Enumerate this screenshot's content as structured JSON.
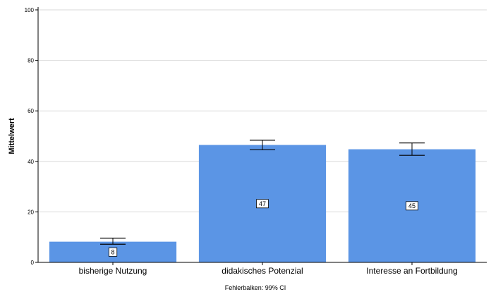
{
  "chart_data": {
    "type": "bar",
    "categories": [
      "bisherige Nutzung",
      "didakisches Potenzial",
      "Interesse an Fortbildung"
    ],
    "values": [
      8.2,
      46.5,
      44.8
    ],
    "data_labels": [
      "8",
      "47",
      "45"
    ],
    "error_bars": [
      {
        "lower": 7.2,
        "upper": 9.6
      },
      {
        "lower": 44.6,
        "upper": 48.4
      },
      {
        "lower": 42.4,
        "upper": 47.3
      }
    ],
    "ylabel": "Mittelwert",
    "xlabel": "",
    "ylim": [
      0,
      100
    ],
    "yticks": [
      0,
      20,
      40,
      60,
      80,
      100
    ],
    "grid": true,
    "footnote": "Fehlerbalken: 99% CI",
    "colors": {
      "bar": "#5B95E5",
      "grid": "#d9d9d9",
      "axis": "#000000",
      "errorbar": "#000000"
    }
  }
}
